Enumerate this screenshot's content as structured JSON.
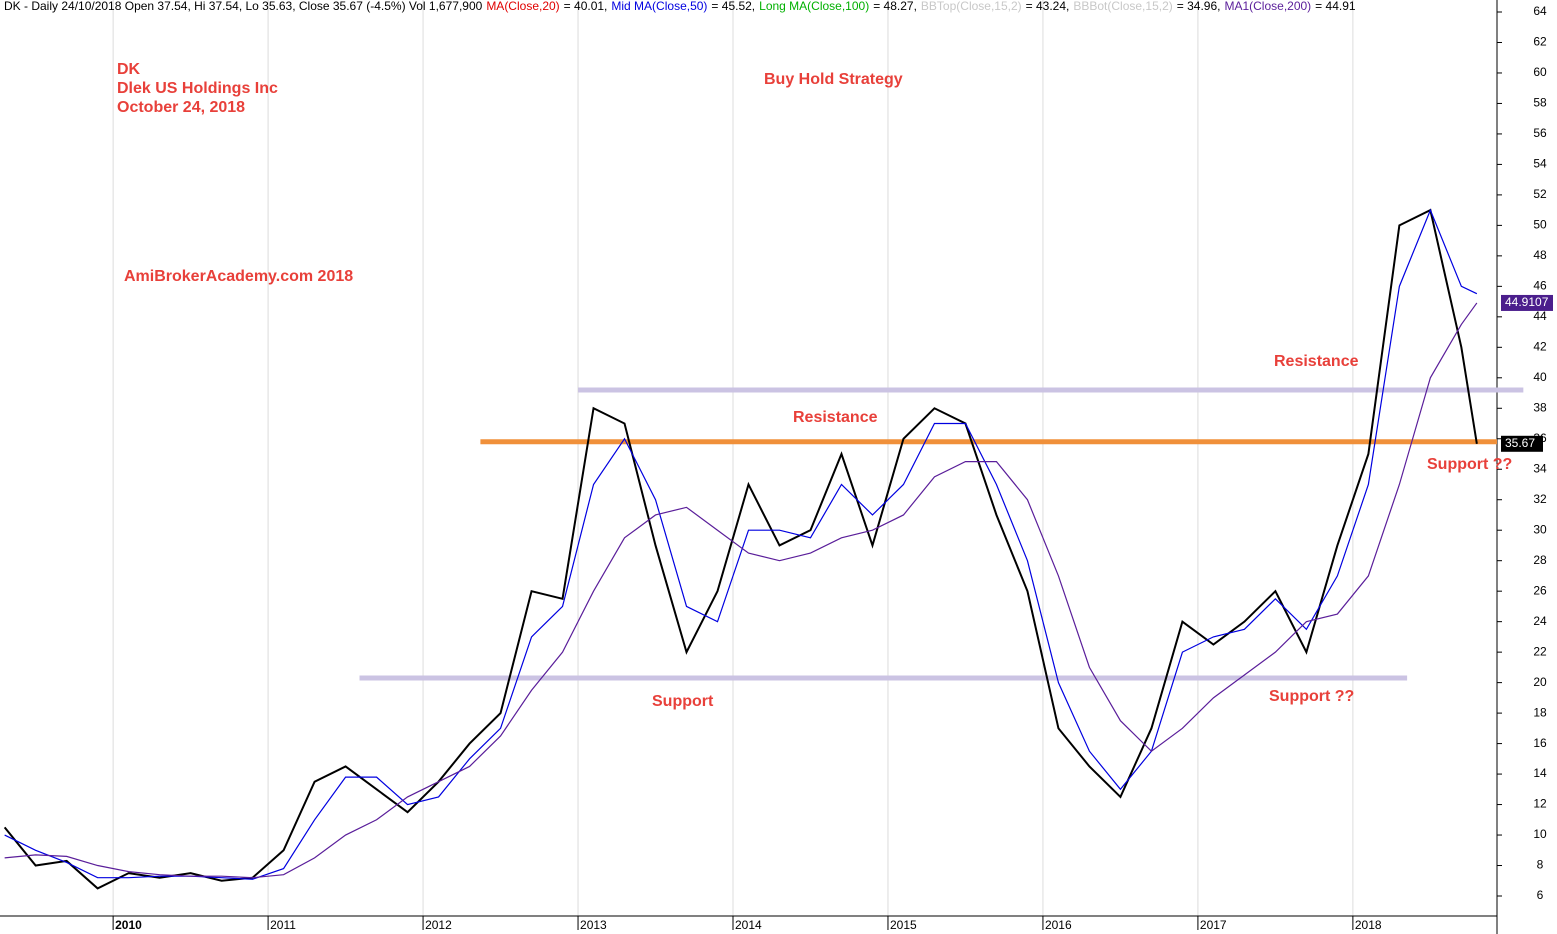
{
  "chart_data": {
    "type": "line",
    "header": [
      {
        "text": "DK - Daily 24/10/2018 Open 37.54, Hi 37.54, Lo 35.63, Close 35.67 (-4.5%) Vol 1,677,900",
        "color": "#000000"
      },
      {
        "text": "MA(Close,20)",
        "color": "#e00000"
      },
      {
        "text": "= 40.01,",
        "color": "#000000"
      },
      {
        "text": "Mid MA(Close,50)",
        "color": "#0000e0"
      },
      {
        "text": "= 45.52,",
        "color": "#000000"
      },
      {
        "text": "Long MA(Close,100)",
        "color": "#00b000"
      },
      {
        "text": "= 48.27,",
        "color": "#000000"
      },
      {
        "text": "BBTop(Close,15,2)",
        "color": "#c8c8c8"
      },
      {
        "text": "= 43.24,",
        "color": "#000000"
      },
      {
        "text": "BBBot(Close,15,2)",
        "color": "#c8c8c8"
      },
      {
        "text": "= 34.96,",
        "color": "#000000"
      },
      {
        "text": "MA1(Close,200)",
        "color": "#5a1e9a"
      },
      {
        "text": "= 44.91",
        "color": "#000000"
      }
    ],
    "annotations": [
      "DK",
      "Dlek US Holdings Inc",
      "October 24, 2018",
      "Buy Hold Strategy",
      "AmiBrokerAcademy.com  2018",
      "Resistance",
      "Resistance",
      "Support",
      "Support ??",
      "Support ??"
    ],
    "x": [
      2009.3,
      2009.5,
      2009.7,
      2009.9,
      2010.1,
      2010.3,
      2010.5,
      2010.7,
      2010.9,
      2011.1,
      2011.3,
      2011.5,
      2011.7,
      2011.9,
      2012.1,
      2012.3,
      2012.5,
      2012.7,
      2012.9,
      2013.1,
      2013.3,
      2013.5,
      2013.7,
      2013.9,
      2014.1,
      2014.3,
      2014.5,
      2014.7,
      2014.9,
      2015.1,
      2015.3,
      2015.5,
      2015.7,
      2015.9,
      2016.1,
      2016.3,
      2016.5,
      2016.7,
      2016.9,
      2017.1,
      2017.3,
      2017.5,
      2017.7,
      2017.9,
      2018.1,
      2018.3,
      2018.5,
      2018.7,
      2018.8
    ],
    "series": [
      {
        "color": "#000000",
        "values": [
          10.5,
          8.0,
          8.3,
          6.5,
          7.5,
          7.2,
          7.5,
          7.0,
          7.2,
          9.0,
          13.5,
          14.5,
          13.0,
          11.5,
          13.5,
          16.0,
          18.0,
          26.0,
          25.5,
          38.0,
          37.0,
          29.0,
          22.0,
          26.0,
          33.0,
          29.0,
          30.0,
          35.0,
          29.0,
          36.0,
          38.0,
          37.0,
          31.0,
          26.0,
          17.0,
          14.5,
          12.5,
          17.0,
          24.0,
          22.5,
          24.0,
          26.0,
          22.0,
          29.0,
          35.0,
          50.0,
          51.0,
          42.0,
          35.67
        ]
      },
      {
        "color": "#0000e0",
        "values": [
          10,
          9,
          8.2,
          7.2,
          7.2,
          7.3,
          7.3,
          7.2,
          7.1,
          7.8,
          11,
          13.8,
          13.8,
          12,
          12.5,
          15,
          17,
          23,
          25,
          33,
          36,
          32,
          25,
          24,
          30,
          30,
          29.5,
          33,
          31,
          33,
          37,
          37,
          33,
          28,
          20,
          15.5,
          13,
          15.5,
          22,
          23,
          23.5,
          25.5,
          23.5,
          27,
          33,
          46,
          51,
          46,
          45.52
        ]
      },
      {
        "color": "#5a1e9a",
        "values": [
          8.5,
          8.7,
          8.6,
          8.0,
          7.6,
          7.4,
          7.3,
          7.3,
          7.2,
          7.4,
          8.5,
          10,
          11,
          12.5,
          13.5,
          14.5,
          16.5,
          19.5,
          22,
          26,
          29.5,
          31,
          31.5,
          30,
          28.5,
          28,
          28.5,
          29.5,
          30,
          31,
          33.5,
          34.5,
          34.5,
          32,
          27,
          21,
          17.5,
          15.5,
          17,
          19,
          20.5,
          22,
          24,
          24.5,
          27,
          33,
          40,
          43.5,
          44.91
        ]
      }
    ],
    "levels": [
      {
        "value": 39.2,
        "x": [
          2013.0,
          2019.1
        ],
        "color": "#cbc3e3"
      },
      {
        "value": 35.8,
        "x": [
          2012.37,
          2018.93
        ],
        "color": "#f0903a"
      },
      {
        "value": 20.3,
        "x": [
          2011.59,
          2018.35
        ],
        "color": "#cbc3e3"
      }
    ],
    "value_tags": [
      {
        "value": 44.9107,
        "label": "44.9107",
        "color": "#4b1e8c"
      },
      {
        "value": 35.67,
        "label": "35.67",
        "color": "#000000"
      }
    ],
    "xlim": [
      2009.27,
      2018.93
    ],
    "xticks": [
      2010,
      2011,
      2012,
      2013,
      2014,
      2015,
      2016,
      2017,
      2018
    ],
    "ylim": [
      6,
      64
    ],
    "yticks": [
      6,
      8,
      10,
      12,
      14,
      16,
      18,
      20,
      22,
      24,
      26,
      28,
      30,
      32,
      34,
      36,
      38,
      40,
      42,
      44,
      46,
      48,
      50,
      52,
      54,
      56,
      58,
      60,
      62,
      64
    ],
    "grid": true
  }
}
